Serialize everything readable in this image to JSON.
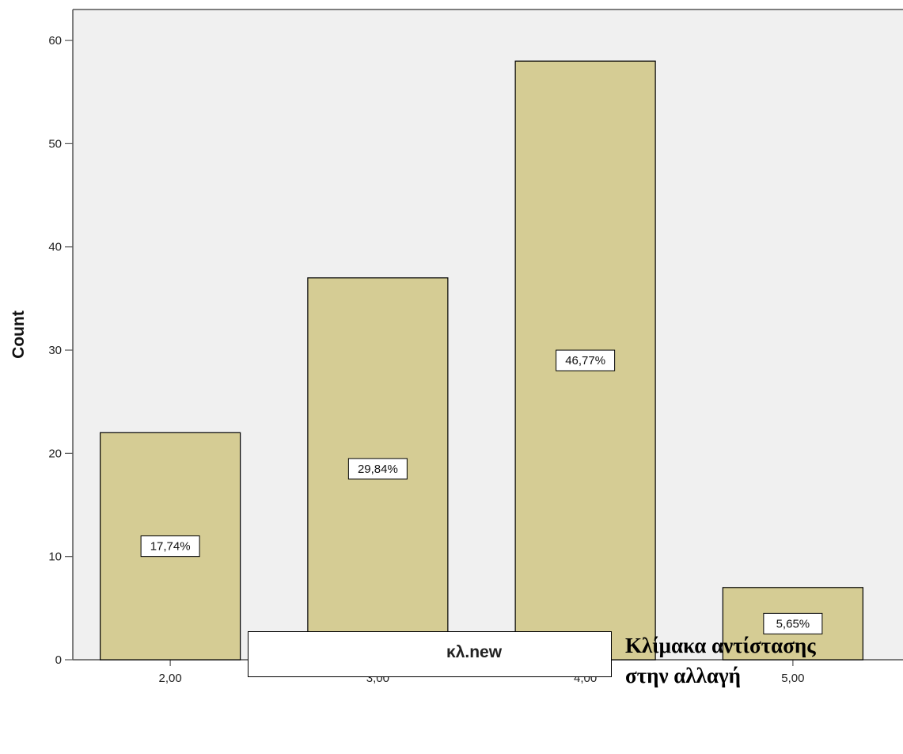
{
  "chart_data": {
    "type": "bar",
    "categories": [
      "2,00",
      "3,00",
      "4,00",
      "5,00"
    ],
    "values": [
      22,
      37,
      58,
      7
    ],
    "data_labels": [
      "17,74%",
      "29,84%",
      "46,77%",
      "5,65%"
    ],
    "ylabel": "Count",
    "xlabel": "κλ.new",
    "ylim": [
      0,
      63
    ],
    "yticks": [
      0,
      10,
      20,
      30,
      40,
      50,
      60
    ],
    "grid": false,
    "bar_color": "#d5cc94",
    "plot_background": "#f0f0f0"
  },
  "caption": {
    "line1": "Κλίμακα αντίστασης",
    "line2": "στην αλλαγή"
  }
}
